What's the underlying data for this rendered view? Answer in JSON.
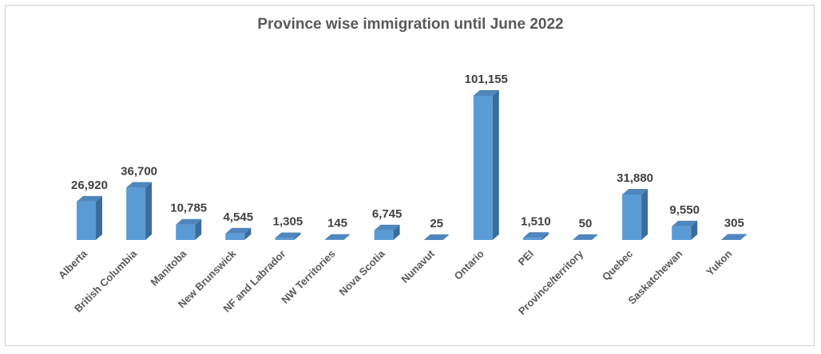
{
  "chart_data": {
    "type": "bar",
    "title": "Province wise immigration until June 2022",
    "xlabel": "",
    "ylabel": "",
    "categories": [
      "Alberta",
      "British Columbia",
      "Manitoba",
      "New Brunswick",
      "NF and Labrador",
      "NW Territories",
      "Nova Scotia",
      "Nunavut",
      "Ontario",
      "PEI",
      "Province/territory",
      "Quebec",
      "Saskatchewan",
      "Yukon"
    ],
    "values": [
      26920,
      36700,
      10785,
      4545,
      1305,
      145,
      6745,
      25,
      101155,
      1510,
      50,
      31880,
      9550,
      305
    ],
    "value_labels": [
      "26,920",
      "36,700",
      "10,785",
      "4,545",
      "1,305",
      "145",
      "6,745",
      "25",
      "101,155",
      "1,510",
      "50",
      "31,880",
      "9,550",
      "305"
    ],
    "ylim": [
      0,
      101155
    ],
    "grid": false,
    "legend": "none",
    "style": "3d-column",
    "colors": {
      "bar_front": "#5b9bd5",
      "bar_side": "#3a6d9c",
      "bar_top": "#4f86bd"
    }
  }
}
